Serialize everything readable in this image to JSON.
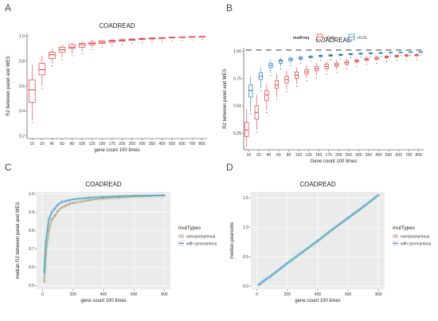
{
  "colors": {
    "red": "#E0393E",
    "blue": "#1F78B4",
    "grey_panel": "#EBEBEB",
    "grid": "#FFFFFF",
    "nonsyn": "#F8766D",
    "withsyn": "#619CFF",
    "line_nonsyn": "#C8A14C",
    "line_withsyn": "#5B8FA8",
    "band": "#7FD3D9"
  },
  "chart_data": [
    {
      "panel_label": "A",
      "type": "box",
      "title": "COADREAD",
      "xlabel": "gene count 100 times",
      "ylabel": "R2 between panel and WES",
      "categories": [
        "10",
        "20",
        "40",
        "60",
        "80",
        "100",
        "125",
        "150",
        "175",
        "200",
        "250",
        "300",
        "350",
        "400",
        "500",
        "600",
        "700",
        "800"
      ],
      "yticks": [
        "0.2",
        "0.4",
        "0.6",
        "0.8",
        "1.0"
      ],
      "ylim": [
        0.18,
        1.02
      ],
      "series": [
        {
          "color": "red",
          "boxes": [
            {
              "min": 0.33,
              "q1": 0.47,
              "med": 0.57,
              "q3": 0.65,
              "max": 0.77
            },
            {
              "min": 0.6,
              "q1": 0.69,
              "med": 0.73,
              "q3": 0.78,
              "max": 0.84
            },
            {
              "min": 0.78,
              "q1": 0.82,
              "med": 0.85,
              "q3": 0.87,
              "max": 0.9
            },
            {
              "min": 0.83,
              "q1": 0.87,
              "med": 0.89,
              "q3": 0.91,
              "max": 0.93
            },
            {
              "min": 0.86,
              "q1": 0.9,
              "med": 0.91,
              "q3": 0.93,
              "max": 0.95
            },
            {
              "min": 0.88,
              "q1": 0.91,
              "med": 0.93,
              "q3": 0.94,
              "max": 0.96
            },
            {
              "min": 0.91,
              "q1": 0.93,
              "med": 0.94,
              "q3": 0.95,
              "max": 0.97
            },
            {
              "min": 0.93,
              "q1": 0.94,
              "med": 0.95,
              "q3": 0.96,
              "max": 0.97
            },
            {
              "min": 0.94,
              "q1": 0.95,
              "med": 0.96,
              "q3": 0.965,
              "max": 0.975
            },
            {
              "min": 0.95,
              "q1": 0.96,
              "med": 0.965,
              "q3": 0.97,
              "max": 0.98
            },
            {
              "min": 0.96,
              "q1": 0.965,
              "med": 0.97,
              "q3": 0.975,
              "max": 0.985
            },
            {
              "min": 0.965,
              "q1": 0.972,
              "med": 0.976,
              "q3": 0.98,
              "max": 0.988
            },
            {
              "min": 0.97,
              "q1": 0.976,
              "med": 0.98,
              "q3": 0.984,
              "max": 0.99
            },
            {
              "min": 0.975,
              "q1": 0.98,
              "med": 0.983,
              "q3": 0.986,
              "max": 0.992
            },
            {
              "min": 0.98,
              "q1": 0.984,
              "med": 0.987,
              "q3": 0.99,
              "max": 0.994
            },
            {
              "min": 0.984,
              "q1": 0.988,
              "med": 0.99,
              "q3": 0.992,
              "max": 0.996
            },
            {
              "min": 0.987,
              "q1": 0.99,
              "med": 0.992,
              "q3": 0.994,
              "max": 0.997
            },
            {
              "min": 0.99,
              "q1": 0.993,
              "med": 0.995,
              "q3": 0.996,
              "max": 0.998
            }
          ]
        }
      ]
    },
    {
      "panel_label": "B",
      "type": "box",
      "title": "COADREAD",
      "xlabel": "Gene count 100 times",
      "ylabel": "R2 between panel and WES",
      "categories": [
        "10",
        "20",
        "40",
        "60",
        "80",
        "100",
        "125",
        "150",
        "175",
        "200",
        "250",
        "300",
        "350",
        "400",
        "500",
        "600",
        "700",
        "800"
      ],
      "yticks": [
        "0.25",
        "0.50",
        "0.75",
        "1.00"
      ],
      "ylim": [
        0.1,
        1.03
      ],
      "legend": {
        "title": "mutFreq",
        "entries": [
          "<0.01",
          ">0.01"
        ],
        "placement": "top"
      },
      "significance": "****",
      "series": [
        {
          "name": "<0.01",
          "color": "red",
          "boxes": [
            {
              "min": 0.12,
              "q1": 0.22,
              "med": 0.28,
              "q3": 0.35,
              "max": 0.47
            },
            {
              "min": 0.28,
              "q1": 0.38,
              "med": 0.44,
              "q3": 0.5,
              "max": 0.6
            },
            {
              "min": 0.46,
              "q1": 0.55,
              "med": 0.6,
              "q3": 0.64,
              "max": 0.7
            },
            {
              "min": 0.58,
              "q1": 0.66,
              "med": 0.69,
              "q3": 0.73,
              "max": 0.79
            },
            {
              "min": 0.65,
              "q1": 0.71,
              "med": 0.74,
              "q3": 0.77,
              "max": 0.82
            },
            {
              "min": 0.7,
              "q1": 0.75,
              "med": 0.78,
              "q3": 0.81,
              "max": 0.85
            },
            {
              "min": 0.75,
              "q1": 0.79,
              "med": 0.81,
              "q3": 0.83,
              "max": 0.87
            },
            {
              "min": 0.78,
              "q1": 0.82,
              "med": 0.84,
              "q3": 0.86,
              "max": 0.89
            },
            {
              "min": 0.81,
              "q1": 0.84,
              "med": 0.86,
              "q3": 0.88,
              "max": 0.91
            },
            {
              "min": 0.83,
              "q1": 0.86,
              "med": 0.875,
              "q3": 0.89,
              "max": 0.92
            },
            {
              "min": 0.86,
              "q1": 0.88,
              "med": 0.895,
              "q3": 0.91,
              "max": 0.93
            },
            {
              "min": 0.88,
              "q1": 0.9,
              "med": 0.91,
              "q3": 0.92,
              "max": 0.94
            },
            {
              "min": 0.9,
              "q1": 0.915,
              "med": 0.925,
              "q3": 0.935,
              "max": 0.95
            },
            {
              "min": 0.91,
              "q1": 0.925,
              "med": 0.935,
              "q3": 0.945,
              "max": 0.955
            },
            {
              "min": 0.925,
              "q1": 0.94,
              "med": 0.947,
              "q3": 0.955,
              "max": 0.965
            },
            {
              "min": 0.935,
              "q1": 0.947,
              "med": 0.955,
              "q3": 0.962,
              "max": 0.97
            },
            {
              "min": 0.94,
              "q1": 0.953,
              "med": 0.96,
              "q3": 0.966,
              "max": 0.975
            },
            {
              "min": 0.945,
              "q1": 0.957,
              "med": 0.964,
              "q3": 0.97,
              "max": 0.978
            }
          ]
        },
        {
          "name": ">0.01",
          "color": "blue",
          "boxes": [
            {
              "min": 0.45,
              "q1": 0.58,
              "med": 0.64,
              "q3": 0.69,
              "max": 0.77
            },
            {
              "min": 0.66,
              "q1": 0.74,
              "med": 0.77,
              "q3": 0.8,
              "max": 0.85
            },
            {
              "min": 0.8,
              "q1": 0.85,
              "med": 0.87,
              "q3": 0.89,
              "max": 0.92
            },
            {
              "min": 0.86,
              "q1": 0.89,
              "med": 0.91,
              "q3": 0.92,
              "max": 0.94
            },
            {
              "min": 0.89,
              "q1": 0.91,
              "med": 0.925,
              "q3": 0.935,
              "max": 0.95
            },
            {
              "min": 0.91,
              "q1": 0.925,
              "med": 0.935,
              "q3": 0.945,
              "max": 0.96
            },
            {
              "min": 0.93,
              "q1": 0.94,
              "med": 0.948,
              "q3": 0.955,
              "max": 0.965
            },
            {
              "min": 0.94,
              "q1": 0.95,
              "med": 0.956,
              "q3": 0.962,
              "max": 0.97
            },
            {
              "min": 0.945,
              "q1": 0.955,
              "med": 0.961,
              "q3": 0.967,
              "max": 0.975
            },
            {
              "min": 0.95,
              "q1": 0.96,
              "med": 0.966,
              "q3": 0.971,
              "max": 0.978
            },
            {
              "min": 0.96,
              "q1": 0.967,
              "med": 0.972,
              "q3": 0.977,
              "max": 0.983
            },
            {
              "min": 0.965,
              "q1": 0.972,
              "med": 0.977,
              "q3": 0.981,
              "max": 0.986
            },
            {
              "min": 0.97,
              "q1": 0.976,
              "med": 0.98,
              "q3": 0.984,
              "max": 0.989
            },
            {
              "min": 0.973,
              "q1": 0.979,
              "med": 0.983,
              "q3": 0.986,
              "max": 0.99
            },
            {
              "min": 0.977,
              "q1": 0.983,
              "med": 0.986,
              "q3": 0.989,
              "max": 0.992
            },
            {
              "min": 0.98,
              "q1": 0.986,
              "med": 0.989,
              "q3": 0.991,
              "max": 0.994
            },
            {
              "min": 0.983,
              "q1": 0.988,
              "med": 0.991,
              "q3": 0.993,
              "max": 0.995
            },
            {
              "min": 0.985,
              "q1": 0.99,
              "med": 0.992,
              "q3": 0.994,
              "max": 0.996
            }
          ]
        }
      ]
    },
    {
      "panel_label": "C",
      "type": "scatter",
      "title": "COADREAD",
      "xlabel": "gene count 100 times",
      "ylabel": "median R2 between panel and WES",
      "xticks": [
        "0",
        "200",
        "400",
        "600",
        "800"
      ],
      "yticks": [
        "0.5",
        "0.6",
        "0.7",
        "0.8",
        "0.9",
        "1.0"
      ],
      "xlim": [
        -40,
        840
      ],
      "ylim": [
        0.48,
        1.01
      ],
      "legend": {
        "title": "mutTypes",
        "entries": [
          "nonsynonymous",
          "with synonymous"
        ],
        "placement": "right"
      },
      "series": [
        {
          "name": "nonsynonymous",
          "color": "nonsyn",
          "x": [
            10,
            20,
            40,
            60,
            80,
            100,
            125,
            150,
            175,
            200,
            300,
            400,
            500,
            600,
            700,
            800
          ],
          "y": [
            0.52,
            0.67,
            0.8,
            0.86,
            0.88,
            0.905,
            0.925,
            0.935,
            0.945,
            0.95,
            0.965,
            0.975,
            0.98,
            0.985,
            0.988,
            0.99
          ]
        },
        {
          "name": "with synonymous",
          "color": "withsyn",
          "x": [
            10,
            20,
            40,
            60,
            80,
            100,
            125,
            150,
            175,
            200,
            300,
            400,
            500,
            600,
            700,
            800
          ],
          "y": [
            0.57,
            0.74,
            0.86,
            0.9,
            0.92,
            0.94,
            0.955,
            0.96,
            0.965,
            0.97,
            0.978,
            0.983,
            0.987,
            0.989,
            0.99,
            0.992
          ]
        }
      ]
    },
    {
      "panel_label": "D",
      "type": "scatter",
      "title": "COADREAD",
      "xlabel": "gene count 100 times",
      "ylabel": "median pearsons",
      "xticks": [
        "0",
        "200",
        "400",
        "600",
        "800"
      ],
      "yticks": [
        "0.0",
        "0.5",
        "1.0",
        "1.5"
      ],
      "xlim": [
        -40,
        840
      ],
      "ylim": [
        -0.05,
        1.6
      ],
      "legend": {
        "title": "mutTypes",
        "entries": [
          "nonsynonymous",
          "with synonymous"
        ],
        "placement": "right"
      },
      "series": [
        {
          "name": "nonsynonymous",
          "color": "nonsyn",
          "x": [
            10,
            20,
            40,
            60,
            80,
            100,
            125,
            150,
            175,
            200,
            300,
            400,
            500,
            600,
            700,
            800
          ],
          "y": [
            0.02,
            0.04,
            0.08,
            0.12,
            0.15,
            0.19,
            0.24,
            0.29,
            0.34,
            0.39,
            0.58,
            0.77,
            0.97,
            1.16,
            1.35,
            1.55
          ]
        },
        {
          "name": "with synonymous",
          "color": "withsyn",
          "x": [
            10,
            20,
            40,
            60,
            80,
            100,
            125,
            150,
            175,
            200,
            300,
            400,
            500,
            600,
            700,
            800
          ],
          "y": [
            0.02,
            0.04,
            0.08,
            0.12,
            0.15,
            0.19,
            0.24,
            0.29,
            0.34,
            0.39,
            0.58,
            0.77,
            0.97,
            1.16,
            1.35,
            1.55
          ]
        }
      ]
    }
  ]
}
